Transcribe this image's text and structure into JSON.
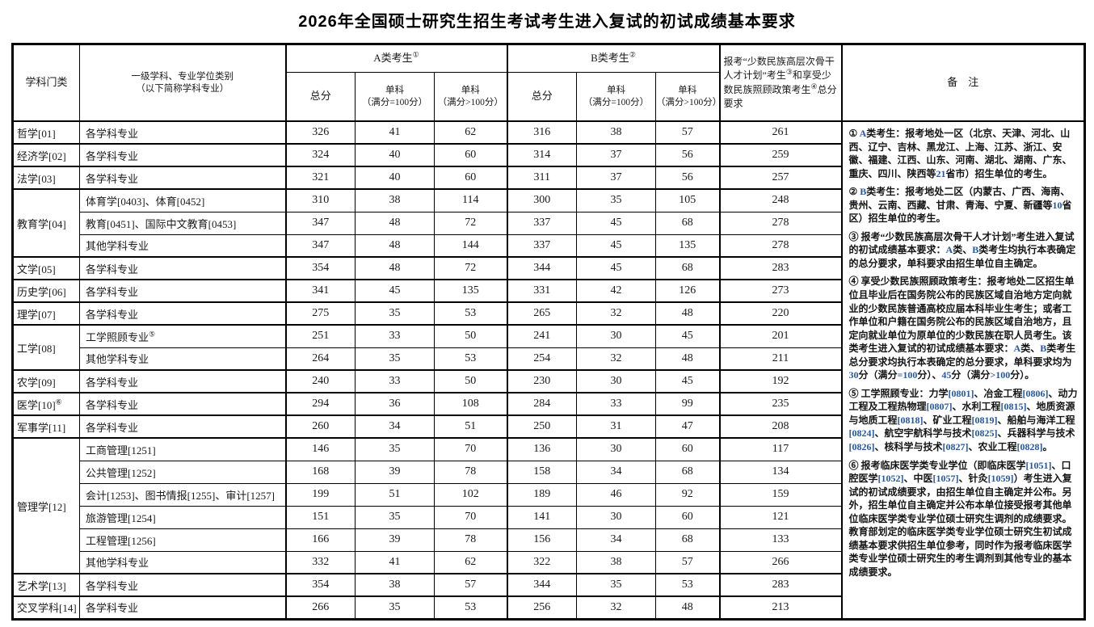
{
  "page": {
    "title": "2026年全国硕士研究生招生考试考生进入复试的初试成绩基本要求"
  },
  "table": {
    "header": {
      "col_category": "学科门类",
      "col_specialty_line1": "一级学科、专业学位类别",
      "col_specialty_line2": "（以下简称学科专业）",
      "group_a_label": "A类考生",
      "group_a_sup": "①",
      "group_b_label": "B类考生",
      "group_b_sup": "②",
      "col_total": "总分",
      "col_sub100_line1": "单科",
      "col_sub100_line2": "（满分=100分）",
      "col_subgt100_line1": "单科",
      "col_subgt100_line2": "（满分>100分）",
      "minority_t1": "报考“少数民族高层次骨干人才计划”考生",
      "minority_s1": "③",
      "minority_t2": "和享受少数民族照顾政策考生",
      "minority_s2": "④",
      "minority_t3": "总分要求",
      "col_remarks": "备　注"
    },
    "groups": [
      {
        "category": "哲学[01]",
        "rows": [
          {
            "name": "各学科专业",
            "a": [
              326,
              41,
              62
            ],
            "b": [
              316,
              38,
              57
            ],
            "m": 261
          }
        ]
      },
      {
        "category": "经济学[02]",
        "rows": [
          {
            "name": "各学科专业",
            "a": [
              324,
              40,
              60
            ],
            "b": [
              314,
              37,
              56
            ],
            "m": 259
          }
        ]
      },
      {
        "category": "法学[03]",
        "rows": [
          {
            "name": "各学科专业",
            "a": [
              321,
              40,
              60
            ],
            "b": [
              311,
              37,
              56
            ],
            "m": 257
          }
        ]
      },
      {
        "category": "教育学[04]",
        "rows": [
          {
            "name": "体育学[0403]、体育[0452]",
            "a": [
              310,
              38,
              114
            ],
            "b": [
              300,
              35,
              105
            ],
            "m": 248
          },
          {
            "name": "教育[0451]、国际中文教育[0453]",
            "a": [
              347,
              48,
              72
            ],
            "b": [
              337,
              45,
              68
            ],
            "m": 278
          },
          {
            "name": "其他学科专业",
            "a": [
              347,
              48,
              144
            ],
            "b": [
              337,
              45,
              135
            ],
            "m": 278
          }
        ]
      },
      {
        "category": "文学[05]",
        "rows": [
          {
            "name": "各学科专业",
            "a": [
              354,
              48,
              72
            ],
            "b": [
              344,
              45,
              68
            ],
            "m": 283
          }
        ]
      },
      {
        "category": "历史学[06]",
        "rows": [
          {
            "name": "各学科专业",
            "a": [
              341,
              45,
              135
            ],
            "b": [
              331,
              42,
              126
            ],
            "m": 273
          }
        ]
      },
      {
        "category": "理学[07]",
        "rows": [
          {
            "name": "各学科专业",
            "a": [
              275,
              35,
              53
            ],
            "b": [
              265,
              32,
              48
            ],
            "m": 220
          }
        ]
      },
      {
        "category": "工学[08]",
        "rows": [
          {
            "name": "工学照顾专业",
            "sup": "⑤",
            "a": [
              251,
              33,
              50
            ],
            "b": [
              241,
              30,
              45
            ],
            "m": 201
          },
          {
            "name": "其他学科专业",
            "a": [
              264,
              35,
              53
            ],
            "b": [
              254,
              32,
              48
            ],
            "m": 211
          }
        ]
      },
      {
        "category": "农学[09]",
        "rows": [
          {
            "name": "各学科专业",
            "a": [
              240,
              33,
              50
            ],
            "b": [
              230,
              30,
              45
            ],
            "m": 192
          }
        ]
      },
      {
        "category": "医学[10]",
        "sup": "⑥",
        "rows": [
          {
            "name": "各学科专业",
            "a": [
              294,
              36,
              108
            ],
            "b": [
              284,
              33,
              99
            ],
            "m": 235
          }
        ]
      },
      {
        "category": "军事学[11]",
        "rows": [
          {
            "name": "各学科专业",
            "a": [
              260,
              34,
              51
            ],
            "b": [
              250,
              31,
              47
            ],
            "m": 208
          }
        ]
      },
      {
        "category": "管理学[12]",
        "rows": [
          {
            "name": "工商管理[1251]",
            "a": [
              146,
              35,
              70
            ],
            "b": [
              136,
              30,
              60
            ],
            "m": 117
          },
          {
            "name": "公共管理[1252]",
            "a": [
              168,
              39,
              78
            ],
            "b": [
              158,
              34,
              68
            ],
            "m": 134
          },
          {
            "name": "会计[1253]、图书情报[1255]、审计[1257]",
            "a": [
              199,
              51,
              102
            ],
            "b": [
              189,
              46,
              92
            ],
            "m": 159
          },
          {
            "name": "旅游管理[1254]",
            "a": [
              151,
              35,
              70
            ],
            "b": [
              141,
              30,
              60
            ],
            "m": 121
          },
          {
            "name": "工程管理[1256]",
            "a": [
              166,
              39,
              78
            ],
            "b": [
              156,
              34,
              68
            ],
            "m": 133
          },
          {
            "name": "其他学科专业",
            "a": [
              332,
              41,
              62
            ],
            "b": [
              322,
              38,
              57
            ],
            "m": 266
          }
        ]
      },
      {
        "category": "艺术学[13]",
        "rows": [
          {
            "name": "各学科专业",
            "a": [
              354,
              38,
              57
            ],
            "b": [
              344,
              35,
              53
            ],
            "m": 283
          }
        ]
      },
      {
        "category": "交叉学科[14]",
        "rows": [
          {
            "name": "各学科专业",
            "a": [
              266,
              35,
              53
            ],
            "b": [
              256,
              32,
              48
            ],
            "m": 213
          }
        ]
      }
    ],
    "remarks": [
      "① A类考生：报考地处一区（北京、天津、河北、山西、辽宁、吉林、黑龙江、上海、江苏、浙江、安徽、福建、江西、山东、河南、湖北、湖南、广东、重庆、四川、陕西等21省市）招生单位的考生。",
      "② B类考生：报考地处二区（内蒙古、广西、海南、贵州、云南、西藏、甘肃、青海、宁夏、新疆等10省区）招生单位的考生。",
      "③ 报考“少数民族高层次骨干人才计划”考生进入复试的初试成绩基本要求：A类、B类考生均执行本表确定的总分要求，单科要求由招生单位自主确定。",
      "④ 享受少数民族照顾政策考生：报考地处二区招生单位且毕业后在国务院公布的民族区域自治地方定向就业的少数民族普通高校应届本科毕业生考生；或者工作单位和户籍在国务院公布的民族区域自治地方，且定向就业单位为原单位的少数民族在职人员考生。该类考生进入复试的初试成绩基本要求：A类、B类考生总分要求均执行本表确定的总分要求，单科要求均为30分（满分=100分）、45分（满分>100分）。",
      "⑤ 工学照顾专业：力学[0801]、冶金工程[0806]、动力工程及工程热物理[0807]、水利工程[0815]、地质资源与地质工程[0818]、矿业工程[0819]、船舶与海洋工程[0824]、航空宇航科学与技术[0825]、兵器科学与技术[0826]、核科学与技术[0827]、农业工程[0828]。",
      "⑥ 报考临床医学类专业学位（即临床医学[1051]、口腔医学[1052]、中医[1057]、针灸[1059]）考生进入复试的初试成绩要求，由招生单位自主确定并公布。另外，招生单位自主确定并公布本单位接受报考其他单位临床医学类专业学位硕士研究生调剂的成绩要求。教育部划定的临床医学类专业学位硕士研究生初试成绩基本要求供招生单位参考，同时作为报考临床医学类专业学位硕士研究生的考生调剂到其他专业的基本成绩要求。"
    ]
  }
}
